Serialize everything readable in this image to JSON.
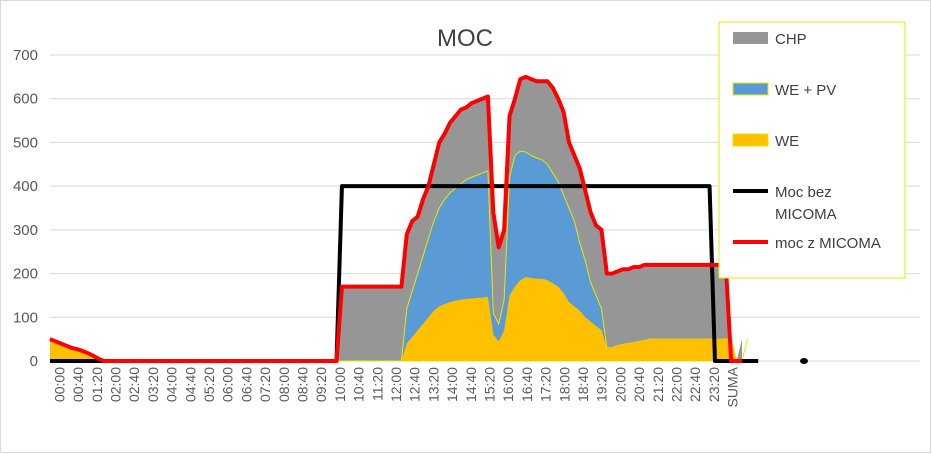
{
  "chart_data": {
    "type": "area",
    "title": "MOC",
    "xlabel": "",
    "ylabel": "",
    "ylim": [
      0,
      700
    ],
    "yticks": [
      0,
      100,
      200,
      300,
      400,
      500,
      600,
      700
    ],
    "grid": true,
    "legend_position": "right",
    "x_tick_labels": [
      "00:00",
      "00:40",
      "01:20",
      "02:00",
      "02:40",
      "03:20",
      "04:00",
      "04:40",
      "05:20",
      "06:00",
      "06:40",
      "07:20",
      "08:00",
      "08:40",
      "09:20",
      "10:00",
      "10:40",
      "11:20",
      "12:00",
      "12:40",
      "13:20",
      "14:00",
      "14:40",
      "15:20",
      "16:00",
      "16:40",
      "17:20",
      "18:00",
      "18:40",
      "19:20",
      "20:00",
      "20:40",
      "21:20",
      "22:00",
      "22:40",
      "23:20",
      "SUMA"
    ],
    "series": [
      {
        "name": "CHP",
        "kind": "area",
        "color": "#969696",
        "values": [
          0,
          0,
          0,
          0,
          0,
          0,
          0,
          0,
          0,
          0,
          0,
          0,
          0,
          0,
          0,
          0,
          0,
          0,
          0,
          0,
          0,
          0,
          0,
          0,
          0,
          0,
          0,
          0,
          0,
          0,
          0,
          0,
          0,
          0,
          0,
          0,
          0,
          0,
          0,
          0,
          0,
          0,
          0,
          0,
          0,
          0,
          0,
          0,
          0,
          0,
          0,
          0,
          0,
          0,
          170,
          170,
          170,
          170,
          170,
          170,
          170,
          170,
          170,
          170,
          170,
          170,
          290,
          320,
          330,
          370,
          400,
          450,
          500,
          520,
          545,
          560,
          575,
          580,
          590,
          595,
          600,
          605,
          340,
          260,
          300,
          560,
          600,
          645,
          650,
          645,
          640,
          640,
          640,
          625,
          600,
          570,
          500,
          470,
          440,
          390,
          340,
          310,
          300,
          200,
          200,
          205,
          210,
          210,
          215,
          215,
          220,
          220,
          220,
          220,
          220,
          220,
          220,
          220,
          220,
          220,
          220,
          220,
          220,
          220,
          220,
          220,
          0,
          0,
          50
        ]
      },
      {
        "name": "WE + PV",
        "kind": "area",
        "color": "#5b9bd5",
        "values": [
          0,
          0,
          0,
          0,
          0,
          0,
          0,
          0,
          0,
          0,
          0,
          0,
          0,
          0,
          0,
          0,
          0,
          0,
          0,
          0,
          0,
          0,
          0,
          0,
          0,
          0,
          0,
          0,
          0,
          0,
          0,
          0,
          0,
          0,
          0,
          0,
          0,
          0,
          0,
          0,
          0,
          0,
          0,
          0,
          0,
          0,
          0,
          0,
          0,
          0,
          0,
          0,
          0,
          0,
          0,
          0,
          0,
          0,
          0,
          0,
          0,
          0,
          0,
          0,
          0,
          0,
          120,
          160,
          200,
          240,
          280,
          320,
          350,
          370,
          385,
          395,
          405,
          415,
          420,
          425,
          430,
          435,
          110,
          85,
          140,
          420,
          470,
          480,
          478,
          470,
          465,
          460,
          450,
          430,
          410,
          380,
          350,
          320,
          270,
          230,
          180,
          150,
          120,
          30,
          30,
          35,
          38,
          40,
          42,
          45,
          47,
          50,
          50,
          50,
          50,
          50,
          50,
          50,
          50,
          50,
          50,
          50,
          50,
          50,
          50,
          50,
          50,
          0,
          0,
          50
        ]
      },
      {
        "name": "WE",
        "kind": "area",
        "color": "#ffc000",
        "values": [
          50,
          45,
          40,
          35,
          30,
          27,
          23,
          18,
          12,
          5,
          0,
          0,
          0,
          0,
          0,
          0,
          0,
          0,
          0,
          0,
          0,
          0,
          0,
          0,
          0,
          0,
          0,
          0,
          0,
          0,
          0,
          0,
          0,
          0,
          0,
          0,
          0,
          0,
          0,
          0,
          0,
          0,
          0,
          0,
          0,
          0,
          0,
          0,
          0,
          0,
          0,
          0,
          0,
          0,
          0,
          0,
          0,
          0,
          0,
          0,
          0,
          0,
          0,
          0,
          0,
          0,
          40,
          55,
          70,
          85,
          100,
          115,
          125,
          130,
          135,
          138,
          140,
          142,
          143,
          144,
          145,
          147,
          60,
          45,
          70,
          150,
          170,
          185,
          192,
          190,
          188,
          188,
          185,
          178,
          170,
          155,
          135,
          125,
          115,
          100,
          90,
          80,
          70,
          30,
          30,
          35,
          38,
          40,
          42,
          45,
          47,
          50,
          50,
          50,
          50,
          50,
          50,
          50,
          50,
          50,
          50,
          50,
          50,
          50,
          50,
          50,
          50,
          0,
          0,
          50
        ]
      },
      {
        "name": "Moc bez MICOMA",
        "kind": "line",
        "color": "#000000",
        "values": [
          0,
          0,
          0,
          0,
          0,
          0,
          0,
          0,
          0,
          0,
          0,
          0,
          0,
          0,
          0,
          0,
          0,
          0,
          0,
          0,
          0,
          0,
          0,
          0,
          0,
          0,
          0,
          0,
          0,
          0,
          0,
          0,
          0,
          0,
          0,
          0,
          0,
          0,
          0,
          0,
          0,
          0,
          0,
          0,
          0,
          0,
          0,
          0,
          0,
          0,
          0,
          0,
          0,
          0,
          400,
          400,
          400,
          400,
          400,
          400,
          400,
          400,
          400,
          400,
          400,
          400,
          400,
          400,
          400,
          400,
          400,
          400,
          400,
          400,
          400,
          400,
          400,
          400,
          400,
          400,
          400,
          400,
          400,
          400,
          400,
          400,
          400,
          400,
          400,
          400,
          400,
          400,
          400,
          400,
          400,
          400,
          400,
          400,
          400,
          400,
          400,
          400,
          400,
          400,
          400,
          400,
          400,
          400,
          400,
          400,
          400,
          400,
          400,
          400,
          400,
          400,
          400,
          400,
          400,
          400,
          400,
          400,
          400,
          0,
          0,
          0,
          0,
          0,
          0,
          0,
          0,
          0
        ]
      },
      {
        "name": "moc z MICOMA",
        "kind": "line",
        "color": "#ff0000",
        "values": [
          50,
          45,
          40,
          35,
          30,
          27,
          23,
          18,
          12,
          5,
          0,
          0,
          0,
          0,
          0,
          0,
          0,
          0,
          0,
          0,
          0,
          0,
          0,
          0,
          0,
          0,
          0,
          0,
          0,
          0,
          0,
          0,
          0,
          0,
          0,
          0,
          0,
          0,
          0,
          0,
          0,
          0,
          0,
          0,
          0,
          0,
          0,
          0,
          0,
          0,
          0,
          0,
          0,
          0,
          170,
          170,
          170,
          170,
          170,
          170,
          170,
          170,
          170,
          170,
          170,
          170,
          290,
          320,
          330,
          370,
          400,
          450,
          500,
          520,
          545,
          560,
          575,
          580,
          590,
          595,
          600,
          605,
          340,
          260,
          300,
          560,
          600,
          645,
          650,
          645,
          640,
          640,
          640,
          625,
          600,
          570,
          500,
          470,
          440,
          390,
          340,
          310,
          300,
          200,
          200,
          205,
          210,
          210,
          215,
          215,
          220,
          220,
          220,
          220,
          220,
          220,
          220,
          220,
          220,
          220,
          220,
          220,
          220,
          220,
          220,
          220,
          0,
          0,
          0
        ]
      }
    ],
    "extra_marks": [
      {
        "kind": "dot",
        "color": "#000000",
        "y": 0
      }
    ]
  }
}
